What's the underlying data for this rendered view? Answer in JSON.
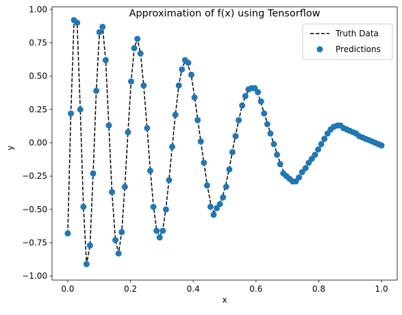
{
  "chart_data": {
    "type": "scatter",
    "title": "Approximation of f(x) using Tensorflow",
    "xlabel": "x",
    "ylabel": "y",
    "xlim": [
      -0.05,
      1.05
    ],
    "ylim": [
      -1.03,
      1.02
    ],
    "x_ticks": [
      0.0,
      0.2,
      0.4,
      0.6,
      0.8,
      1.0
    ],
    "x_tick_labels": [
      "0.0",
      "0.2",
      "0.4",
      "0.6",
      "0.8",
      "1.0"
    ],
    "y_ticks": [
      1.0,
      0.75,
      0.5,
      0.25,
      0.0,
      -0.25,
      -0.5,
      -0.75,
      -1.0
    ],
    "y_tick_labels": [
      "1.00",
      "0.75",
      "0.50",
      "0.25",
      "0.00",
      "−0.25",
      "−0.50",
      "−0.75",
      "−1.00"
    ],
    "grid": false,
    "legend_position": "top-right",
    "series": [
      {
        "name": "Truth Data",
        "kind": "line",
        "style": "dashed",
        "color": "#000000",
        "x": [
          0.0,
          0.01,
          0.02,
          0.03,
          0.04,
          0.05,
          0.06,
          0.071,
          0.081,
          0.091,
          0.101,
          0.111,
          0.121,
          0.131,
          0.141,
          0.152,
          0.162,
          0.172,
          0.182,
          0.192,
          0.202,
          0.212,
          0.222,
          0.232,
          0.242,
          0.253,
          0.263,
          0.273,
          0.283,
          0.293,
          0.303,
          0.313,
          0.323,
          0.333,
          0.343,
          0.354,
          0.364,
          0.374,
          0.384,
          0.394,
          0.404,
          0.414,
          0.424,
          0.434,
          0.444,
          0.455,
          0.465,
          0.475,
          0.485,
          0.495,
          0.505,
          0.515,
          0.525,
          0.535,
          0.545,
          0.556,
          0.566,
          0.576,
          0.586,
          0.596,
          0.606,
          0.616,
          0.626,
          0.636,
          0.646,
          0.657,
          0.667,
          0.677,
          0.687,
          0.697,
          0.707,
          0.717,
          0.727,
          0.737,
          0.747,
          0.758,
          0.768,
          0.778,
          0.788,
          0.798,
          0.808,
          0.818,
          0.828,
          0.838,
          0.848,
          0.859,
          0.869,
          0.879,
          0.889,
          0.899,
          0.909,
          0.919,
          0.929,
          0.939,
          0.949,
          0.96,
          0.97,
          0.98,
          0.99,
          1.0
        ],
        "y": [
          -0.68,
          0.22,
          0.91,
          0.89,
          0.25,
          -0.48,
          -0.91,
          -0.77,
          -0.23,
          0.39,
          0.82,
          0.87,
          0.62,
          0.13,
          -0.37,
          -0.73,
          -0.83,
          -0.67,
          -0.33,
          0.08,
          0.46,
          0.71,
          0.78,
          0.67,
          0.43,
          0.11,
          -0.2,
          -0.47,
          -0.65,
          -0.7,
          -0.65,
          -0.49,
          -0.27,
          -0.03,
          0.21,
          0.43,
          0.56,
          0.61,
          0.58,
          0.5,
          0.35,
          0.18,
          0.01,
          -0.15,
          -0.31,
          -0.45,
          -0.52,
          -0.51,
          -0.46,
          -0.39,
          -0.3,
          -0.19,
          -0.06,
          0.06,
          0.17,
          0.28,
          0.35,
          0.39,
          0.41,
          0.4,
          0.37,
          0.3,
          0.22,
          0.15,
          0.07,
          -0.01,
          -0.08,
          -0.15,
          -0.21,
          -0.25,
          -0.27,
          -0.28,
          -0.28,
          -0.25,
          -0.22,
          -0.18,
          -0.15,
          -0.12,
          -0.09,
          -0.06,
          -0.02,
          0.03,
          0.07,
          0.1,
          0.12,
          0.13,
          0.12,
          0.11,
          0.1,
          0.09,
          0.07,
          0.06,
          0.05,
          0.04,
          0.03,
          0.02,
          0.01,
          0.0,
          -0.01,
          -0.02
        ]
      },
      {
        "name": "Predictions",
        "kind": "scatter",
        "color": "#1f77b4",
        "x": [
          0.0,
          0.01,
          0.02,
          0.03,
          0.04,
          0.05,
          0.06,
          0.071,
          0.081,
          0.091,
          0.101,
          0.111,
          0.121,
          0.131,
          0.141,
          0.152,
          0.162,
          0.172,
          0.182,
          0.192,
          0.202,
          0.212,
          0.222,
          0.232,
          0.242,
          0.253,
          0.263,
          0.273,
          0.283,
          0.293,
          0.303,
          0.313,
          0.323,
          0.333,
          0.343,
          0.354,
          0.364,
          0.374,
          0.384,
          0.394,
          0.404,
          0.414,
          0.424,
          0.434,
          0.444,
          0.455,
          0.465,
          0.475,
          0.485,
          0.495,
          0.505,
          0.515,
          0.525,
          0.535,
          0.545,
          0.556,
          0.566,
          0.576,
          0.586,
          0.596,
          0.606,
          0.616,
          0.626,
          0.636,
          0.646,
          0.657,
          0.667,
          0.677,
          0.687,
          0.697,
          0.707,
          0.717,
          0.727,
          0.737,
          0.747,
          0.758,
          0.768,
          0.778,
          0.788,
          0.798,
          0.808,
          0.818,
          0.828,
          0.838,
          0.848,
          0.859,
          0.869,
          0.879,
          0.889,
          0.899,
          0.909,
          0.919,
          0.929,
          0.939,
          0.949,
          0.96,
          0.97,
          0.98,
          0.99,
          1.0
        ],
        "y": [
          -0.68,
          0.22,
          0.92,
          0.9,
          0.25,
          -0.48,
          -0.91,
          -0.77,
          -0.23,
          0.39,
          0.83,
          0.87,
          0.62,
          0.13,
          -0.37,
          -0.73,
          -0.83,
          -0.67,
          -0.33,
          0.08,
          0.46,
          0.71,
          0.78,
          0.67,
          0.43,
          0.11,
          -0.21,
          -0.48,
          -0.66,
          -0.71,
          -0.66,
          -0.5,
          -0.28,
          -0.03,
          0.21,
          0.43,
          0.55,
          0.62,
          0.6,
          0.51,
          0.34,
          0.17,
          0.01,
          -0.15,
          -0.32,
          -0.48,
          -0.54,
          -0.49,
          -0.46,
          -0.41,
          -0.33,
          -0.2,
          -0.07,
          0.05,
          0.17,
          0.28,
          0.35,
          0.4,
          0.41,
          0.41,
          0.38,
          0.31,
          0.22,
          0.14,
          0.07,
          -0.01,
          -0.09,
          -0.16,
          -0.23,
          -0.25,
          -0.27,
          -0.29,
          -0.29,
          -0.26,
          -0.22,
          -0.19,
          -0.15,
          -0.12,
          -0.09,
          -0.05,
          -0.01,
          0.03,
          0.07,
          0.1,
          0.12,
          0.13,
          0.13,
          0.11,
          0.1,
          0.09,
          0.08,
          0.07,
          0.05,
          0.04,
          0.03,
          0.02,
          0.01,
          0.0,
          -0.01,
          -0.02
        ]
      }
    ]
  }
}
